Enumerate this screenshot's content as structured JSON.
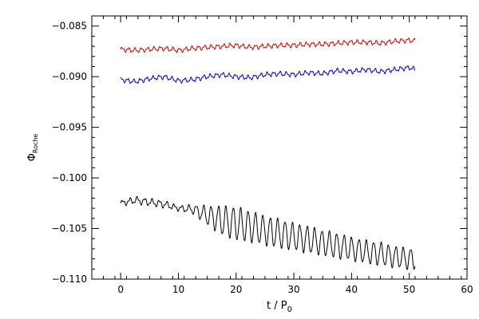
{
  "chart_data": {
    "type": "line",
    "title": "",
    "xlabel": "t / P",
    "xlabel_subscript": "0",
    "ylabel": "Φ",
    "ylabel_subscript": "Roche",
    "xlim": [
      -5,
      60
    ],
    "ylim": [
      -0.11,
      -0.084
    ],
    "x_ticks": [
      0,
      10,
      20,
      30,
      40,
      50,
      60
    ],
    "x_tick_labels": [
      "0",
      "10",
      "20",
      "30",
      "40",
      "50",
      "60"
    ],
    "y_ticks": [
      -0.085,
      -0.09,
      -0.095,
      -0.1,
      -0.105,
      -0.11
    ],
    "y_tick_labels": [
      "−0.085",
      "−0.090",
      "−0.095",
      "−0.100",
      "−0.105",
      "−0.110"
    ],
    "grid": false,
    "legend": "none",
    "series": [
      {
        "color": "#d40000",
        "x": [
          0,
          2.5,
          5,
          7.5,
          10,
          12.5,
          15,
          17.5,
          20,
          22.5,
          25,
          27.5,
          30,
          32.5,
          35,
          37.5,
          40,
          42.5,
          45,
          47.5,
          50,
          51
        ],
        "y": [
          -0.0873,
          -0.0874,
          -0.0873,
          -0.0872,
          -0.0874,
          -0.0872,
          -0.0871,
          -0.087,
          -0.0869,
          -0.0871,
          -0.087,
          -0.0869,
          -0.0869,
          -0.0868,
          -0.0868,
          -0.0867,
          -0.0866,
          -0.0866,
          -0.0867,
          -0.0865,
          -0.0864,
          -0.0865
        ]
      },
      {
        "color": "#0000c8",
        "x": [
          0,
          2.5,
          5,
          7.5,
          10,
          12.5,
          15,
          17.5,
          20,
          22.5,
          25,
          27.5,
          30,
          32.5,
          35,
          37.5,
          40,
          42.5,
          45,
          47.5,
          50,
          51
        ],
        "y": [
          -0.0903,
          -0.0905,
          -0.0902,
          -0.09,
          -0.0904,
          -0.0903,
          -0.09,
          -0.0898,
          -0.09,
          -0.0901,
          -0.0898,
          -0.0897,
          -0.0898,
          -0.0896,
          -0.0897,
          -0.0894,
          -0.0895,
          -0.0893,
          -0.0895,
          -0.0893,
          -0.0891,
          -0.0893
        ]
      },
      {
        "color": "#000000",
        "x": [
          0,
          2.5,
          5,
          7.5,
          10,
          12.5,
          15,
          17.5,
          20,
          22.5,
          25,
          27.5,
          30,
          32.5,
          35,
          37.5,
          40,
          42.5,
          45,
          47.5,
          50,
          51
        ],
        "y": [
          -0.1025,
          -0.1022,
          -0.1024,
          -0.1026,
          -0.103,
          -0.1031,
          -0.1037,
          -0.1042,
          -0.1045,
          -0.1048,
          -0.1052,
          -0.1055,
          -0.1058,
          -0.1061,
          -0.1064,
          -0.1067,
          -0.107,
          -0.1073,
          -0.1075,
          -0.1078,
          -0.108,
          -0.108
        ],
        "oscillation_amplitude": [
          0.0002,
          0.0003,
          0.0003,
          0.0003,
          0.0002,
          0.0004,
          0.0009,
          0.0014,
          0.0016,
          0.0015,
          0.0014,
          0.0014,
          0.0013,
          0.0013,
          0.0012,
          0.0012,
          0.0011,
          0.0011,
          0.0011,
          0.001,
          0.001,
          0.001
        ]
      }
    ]
  }
}
